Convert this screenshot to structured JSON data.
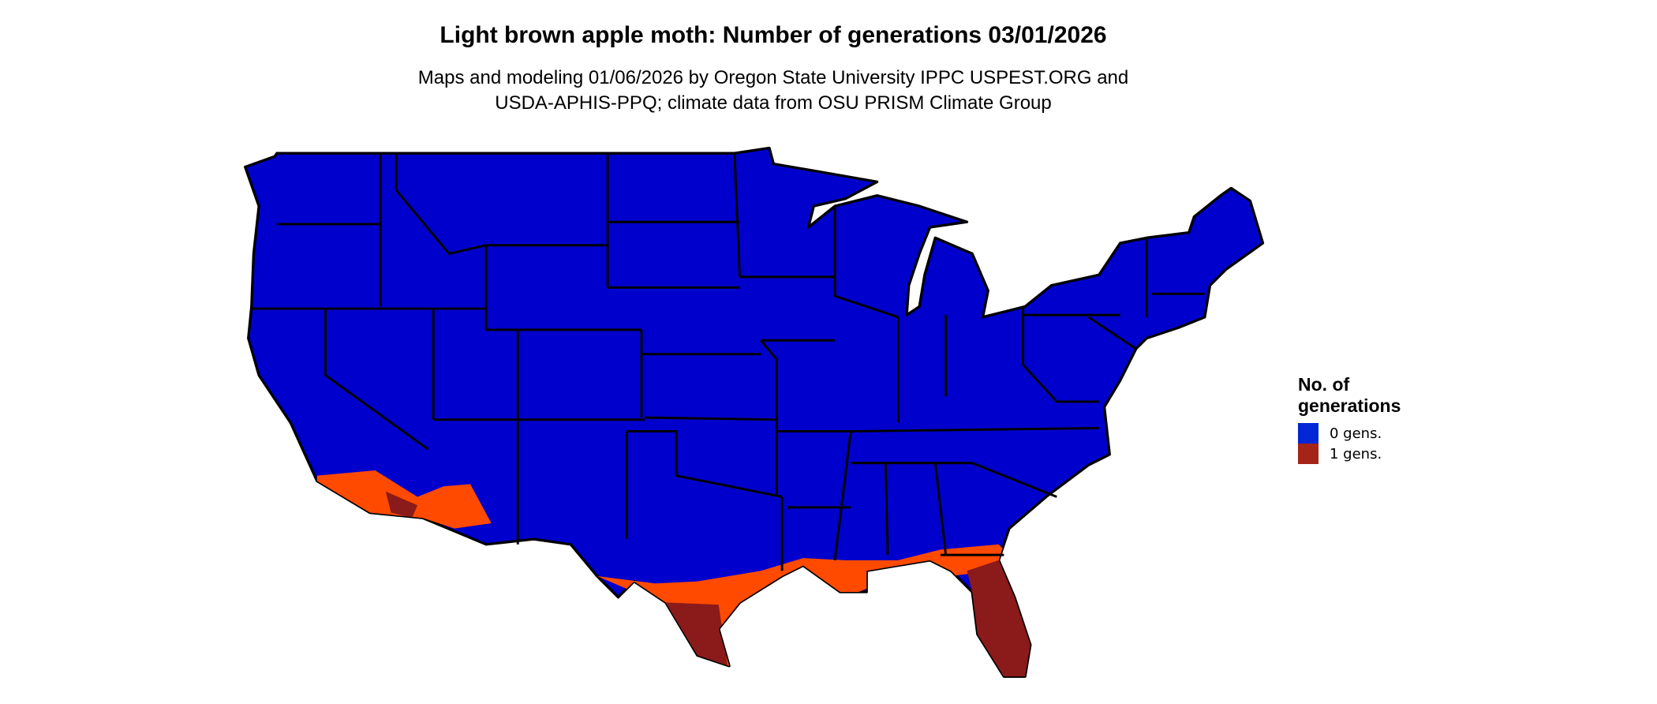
{
  "title": "Light brown apple moth: Number of generations 03/01/2026",
  "subtitle_lines": [
    "Maps and modeling 01/06/2026 by Oregon State University IPPC USPEST.ORG and",
    "USDA-APHIS-PPQ; climate data from OSU PRISM Climate Group"
  ],
  "map": {
    "region": "Contiguous United States",
    "colors": {
      "zero_gens": "#0000CC",
      "one_gen_dark": "#8B1A1A",
      "partial_orange": "#FF4A00",
      "border": "#000000"
    }
  },
  "legend": {
    "title": "No. of generations",
    "items": [
      {
        "label": "0 gens.",
        "color": "#0026D6"
      },
      {
        "label": "1 gens.",
        "color": "#A52418"
      }
    ]
  }
}
